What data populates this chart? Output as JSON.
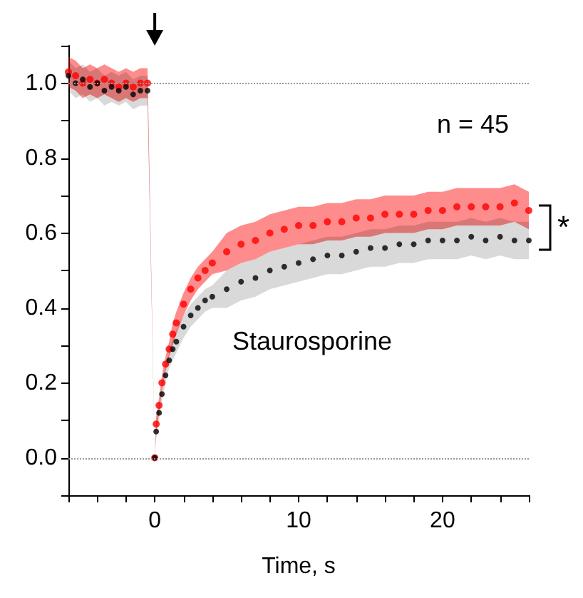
{
  "chart_data": {
    "type": "scatter",
    "xlabel": "Time, s",
    "marker": "circle",
    "annotations": [
      "n = 45",
      "Staurosporine",
      "*"
    ],
    "xlim": [
      -6,
      26
    ],
    "ylim": [
      -0.1,
      1.1
    ],
    "xticks": [
      {
        "value": -6,
        "label": null
      },
      {
        "value": -4,
        "label": null
      },
      {
        "value": -2,
        "label": null
      },
      0,
      {
        "value": 2,
        "label": null
      },
      {
        "value": 4,
        "label": null
      },
      {
        "value": 6,
        "label": null
      },
      {
        "value": 8,
        "label": null
      },
      10,
      {
        "value": 12,
        "label": null
      },
      {
        "value": 14,
        "label": null
      },
      {
        "value": 16,
        "label": null
      },
      {
        "value": 18,
        "label": null
      },
      20,
      {
        "value": 22,
        "label": null
      },
      {
        "value": 24,
        "label": null
      },
      {
        "value": 26,
        "label": null
      }
    ],
    "yticks": [
      {
        "value": -0.1,
        "label": null
      },
      {
        "value": 0,
        "label": "0.0"
      },
      {
        "value": 0.1,
        "label": null
      },
      {
        "value": 0.2,
        "label": "0.2"
      },
      {
        "value": 0.3,
        "label": null
      },
      {
        "value": 0.4,
        "label": "0.4"
      },
      {
        "value": 0.5,
        "label": null
      },
      {
        "value": 0.6,
        "label": "0.6"
      },
      {
        "value": 0.7,
        "label": null
      },
      {
        "value": 0.8,
        "label": "0.8"
      },
      {
        "value": 0.9,
        "label": null
      },
      {
        "value": 1,
        "label": "1.0"
      },
      {
        "value": 1.1,
        "label": null
      }
    ],
    "ref_lines": [
      {
        "axis": "y",
        "value": 1,
        "color": "#999999",
        "line_style": "dotted"
      },
      {
        "axis": "y",
        "value": 0,
        "color": "#999999",
        "line_style": "dotted"
      }
    ],
    "x": [
      -6,
      -5.5,
      -5,
      -4.5,
      -4,
      -3.5,
      -3,
      -2.5,
      -2,
      -1.5,
      -1,
      -0.5,
      0,
      0.1,
      0.3,
      0.5,
      0.75,
      1,
      1.25,
      1.5,
      2,
      2.5,
      3,
      3.5,
      4,
      5,
      6,
      7,
      8,
      9,
      10,
      11,
      12,
      13,
      14,
      15,
      16,
      17,
      18,
      19,
      20,
      21,
      22,
      23,
      24,
      25,
      26
    ],
    "series": [
      {
        "color": "#ff0000",
        "values": [
          1.03,
          1.02,
          1.0,
          1.01,
          1.0,
          1.01,
          1.0,
          0.99,
          1.0,
          0.99,
          1.0,
          1.0,
          0,
          0.09,
          0.14,
          0.2,
          0.25,
          0.29,
          0.33,
          0.36,
          0.41,
          0.45,
          0.48,
          0.5,
          0.52,
          0.55,
          0.57,
          0.58,
          0.6,
          0.61,
          0.62,
          0.62,
          0.63,
          0.63,
          0.64,
          0.64,
          0.65,
          0.65,
          0.65,
          0.66,
          0.66,
          0.67,
          0.67,
          0.67,
          0.67,
          0.68,
          0.66
        ],
        "lower": [
          0.99,
          0.98,
          0.96,
          0.97,
          0.96,
          0.97,
          0.96,
          0.95,
          0.96,
          0.95,
          0.96,
          0.96,
          0,
          0.07,
          0.12,
          0.18,
          0.23,
          0.27,
          0.3,
          0.33,
          0.38,
          0.42,
          0.45,
          0.47,
          0.49,
          0.5,
          0.52,
          0.53,
          0.55,
          0.56,
          0.57,
          0.57,
          0.58,
          0.58,
          0.59,
          0.59,
          0.6,
          0.6,
          0.6,
          0.61,
          0.61,
          0.62,
          0.62,
          0.62,
          0.62,
          0.63,
          0.61
        ],
        "upper": [
          1.07,
          1.06,
          1.04,
          1.05,
          1.04,
          1.05,
          1.04,
          1.03,
          1.04,
          1.03,
          1.04,
          1.04,
          0,
          0.11,
          0.16,
          0.22,
          0.27,
          0.31,
          0.36,
          0.39,
          0.44,
          0.48,
          0.51,
          0.53,
          0.55,
          0.6,
          0.62,
          0.63,
          0.65,
          0.66,
          0.67,
          0.67,
          0.68,
          0.68,
          0.69,
          0.69,
          0.7,
          0.7,
          0.7,
          0.71,
          0.71,
          0.72,
          0.72,
          0.72,
          0.72,
          0.73,
          0.71
        ]
      },
      {
        "color": "#000000",
        "values": [
          1.02,
          1.0,
          1.01,
          0.99,
          1.0,
          0.98,
          0.99,
          0.98,
          0.99,
          0.97,
          0.98,
          0.98,
          0,
          0.07,
          0.12,
          0.17,
          0.22,
          0.26,
          0.29,
          0.31,
          0.35,
          0.38,
          0.4,
          0.42,
          0.43,
          0.45,
          0.47,
          0.48,
          0.5,
          0.51,
          0.52,
          0.53,
          0.54,
          0.54,
          0.55,
          0.56,
          0.56,
          0.57,
          0.57,
          0.58,
          0.58,
          0.58,
          0.59,
          0.58,
          0.59,
          0.58,
          0.58
        ],
        "lower": [
          0.98,
          0.96,
          0.97,
          0.95,
          0.96,
          0.94,
          0.95,
          0.94,
          0.95,
          0.93,
          0.94,
          0.94,
          0,
          0.05,
          0.1,
          0.15,
          0.2,
          0.24,
          0.26,
          0.28,
          0.32,
          0.35,
          0.37,
          0.39,
          0.4,
          0.4,
          0.42,
          0.43,
          0.45,
          0.46,
          0.47,
          0.48,
          0.49,
          0.49,
          0.5,
          0.51,
          0.51,
          0.52,
          0.52,
          0.53,
          0.53,
          0.53,
          0.54,
          0.53,
          0.54,
          0.53,
          0.53
        ],
        "upper": [
          1.06,
          1.04,
          1.05,
          1.03,
          1.04,
          1.02,
          1.03,
          1.02,
          1.03,
          1.01,
          1.02,
          1.02,
          0,
          0.09,
          0.14,
          0.19,
          0.24,
          0.28,
          0.32,
          0.34,
          0.38,
          0.41,
          0.43,
          0.45,
          0.46,
          0.5,
          0.52,
          0.53,
          0.55,
          0.56,
          0.57,
          0.58,
          0.59,
          0.59,
          0.6,
          0.61,
          0.61,
          0.62,
          0.62,
          0.63,
          0.63,
          0.63,
          0.64,
          0.63,
          0.64,
          0.63,
          0.63
        ]
      }
    ]
  }
}
